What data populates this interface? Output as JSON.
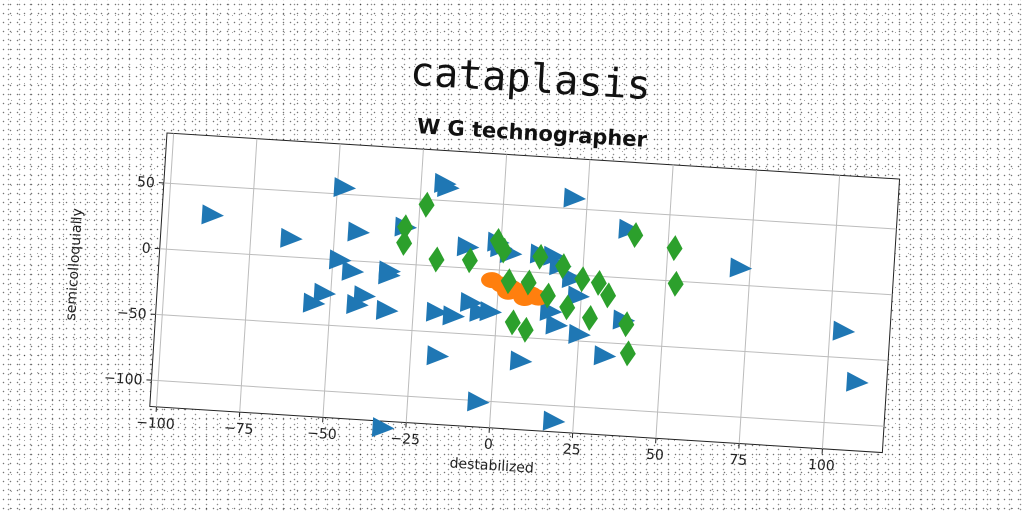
{
  "chart_data": {
    "type": "scatter",
    "title": "cataplasis",
    "subtitle": "W G technographer",
    "xlabel": "destabilized",
    "ylabel": "semicolloquially",
    "xlim": [
      -102,
      118
    ],
    "ylim": [
      -120,
      88
    ],
    "xticks": [
      -100,
      -75,
      -50,
      -25,
      0,
      25,
      50,
      75,
      100
    ],
    "yticks": [
      -100,
      -50,
      0,
      50
    ],
    "grid": true,
    "series": [
      {
        "color": "#1f77b4",
        "marker": "triangle-right",
        "points": [
          [
            -87,
            28
          ],
          [
            -63,
            14
          ],
          [
            -48,
            55
          ],
          [
            -43,
            22
          ],
          [
            -29,
            28
          ],
          [
            -18,
            63
          ],
          [
            -17,
            60
          ],
          [
            -10,
            16
          ],
          [
            -1,
            21
          ],
          [
            0,
            17
          ],
          [
            3,
            13
          ],
          [
            21,
            58
          ],
          [
            38,
            37
          ],
          [
            72,
            13
          ],
          [
            -48,
            0
          ],
          [
            -44,
            -8
          ],
          [
            -33,
            -6
          ],
          [
            -33,
            -9
          ],
          [
            -52,
            -26
          ],
          [
            -55,
            -34
          ],
          [
            -40,
            -26
          ],
          [
            -42,
            -33
          ],
          [
            -33,
            -36
          ],
          [
            -18,
            -35
          ],
          [
            -13,
            -37
          ],
          [
            -8,
            -26
          ],
          [
            -5,
            -33
          ],
          [
            12,
            14
          ],
          [
            16,
            13
          ],
          [
            18,
            6
          ],
          [
            22,
            -3
          ],
          [
            24,
            -16
          ],
          [
            16,
            -29
          ],
          [
            18,
            -39
          ],
          [
            25,
            -45
          ],
          [
            33,
            -60
          ],
          [
            38,
            -32
          ],
          [
            -17,
            -68
          ],
          [
            -4,
            -101
          ],
          [
            19,
            -112
          ],
          [
            -32,
            -125
          ],
          [
            104,
            -30
          ],
          [
            109,
            -68
          ],
          [
            8,
            -68
          ],
          [
            -2,
            -32
          ]
        ]
      },
      {
        "color": "#ff7f0e",
        "marker": "ellipse",
        "points": [
          [
            -2,
            -8
          ],
          [
            1,
            -11
          ],
          [
            4,
            -13
          ],
          [
            7,
            -15
          ],
          [
            10,
            -17
          ],
          [
            12,
            -19
          ],
          [
            8,
            -20
          ],
          [
            3,
            -16
          ]
        ]
      },
      {
        "color": "#2ca02c",
        "marker": "diamond",
        "points": [
          [
            -23,
            46
          ],
          [
            -29,
            28
          ],
          [
            -29,
            16
          ],
          [
            -19,
            5
          ],
          [
            -9,
            6
          ],
          [
            -1,
            22
          ],
          [
            1,
            15
          ],
          [
            12,
            12
          ],
          [
            19,
            6
          ],
          [
            25,
            -3
          ],
          [
            30,
            -5
          ],
          [
            33,
            -14
          ],
          [
            40,
            33
          ],
          [
            52,
            25
          ],
          [
            53,
            -2
          ],
          [
            3,
            -8
          ],
          [
            9,
            -8
          ],
          [
            15,
            -17
          ],
          [
            21,
            -25
          ],
          [
            28,
            -32
          ],
          [
            39,
            -35
          ],
          [
            40,
            -57
          ],
          [
            5,
            -39
          ],
          [
            9,
            -44
          ]
        ]
      }
    ]
  }
}
